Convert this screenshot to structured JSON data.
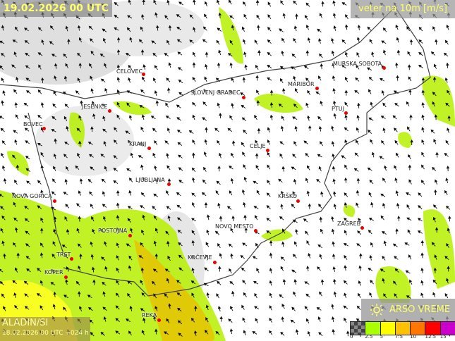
{
  "header": {
    "valid_time": "19.02.2026 00 UTC",
    "layer_title": "veter na 10m [m/s]"
  },
  "model": {
    "name": "ALADIN/SI",
    "run": "18.02.2026 00 UTC +024 h"
  },
  "brand": {
    "name": "ARSO VREME",
    "icon": "sun-icon"
  },
  "legend": {
    "ticks": [
      "0",
      "2.5",
      "5",
      "7.5",
      "10",
      "12.5",
      "15"
    ],
    "colors": [
      "#6a6a6a",
      "#aaff00",
      "#ffff00",
      "#ffc000",
      "#ff7700",
      "#ff0000",
      "#cc00cc"
    ]
  },
  "cities": [
    "CELOVEC",
    "SLOVENJ GRADEC",
    "MARIBOR",
    "MURSKA SOBOTA",
    "JESENICE",
    "BOVEC",
    "KRANJ",
    "CELJE",
    "PTUJ",
    "LJUBLJANA",
    "KRŠKO",
    "NOVA GORICA",
    "ZAGREB",
    "POSTOJNA",
    "NOVO MESTO",
    "KOČEVJE",
    "TRST",
    "KOPER",
    "REKA"
  ],
  "colors": {
    "calm": "#ffffff",
    "wind_2_5": "#aaff00",
    "wind_5": "#ffff00",
    "wind_7_5": "#ffc000",
    "city_dot": "#ee0000",
    "label": "#ffff66"
  }
}
